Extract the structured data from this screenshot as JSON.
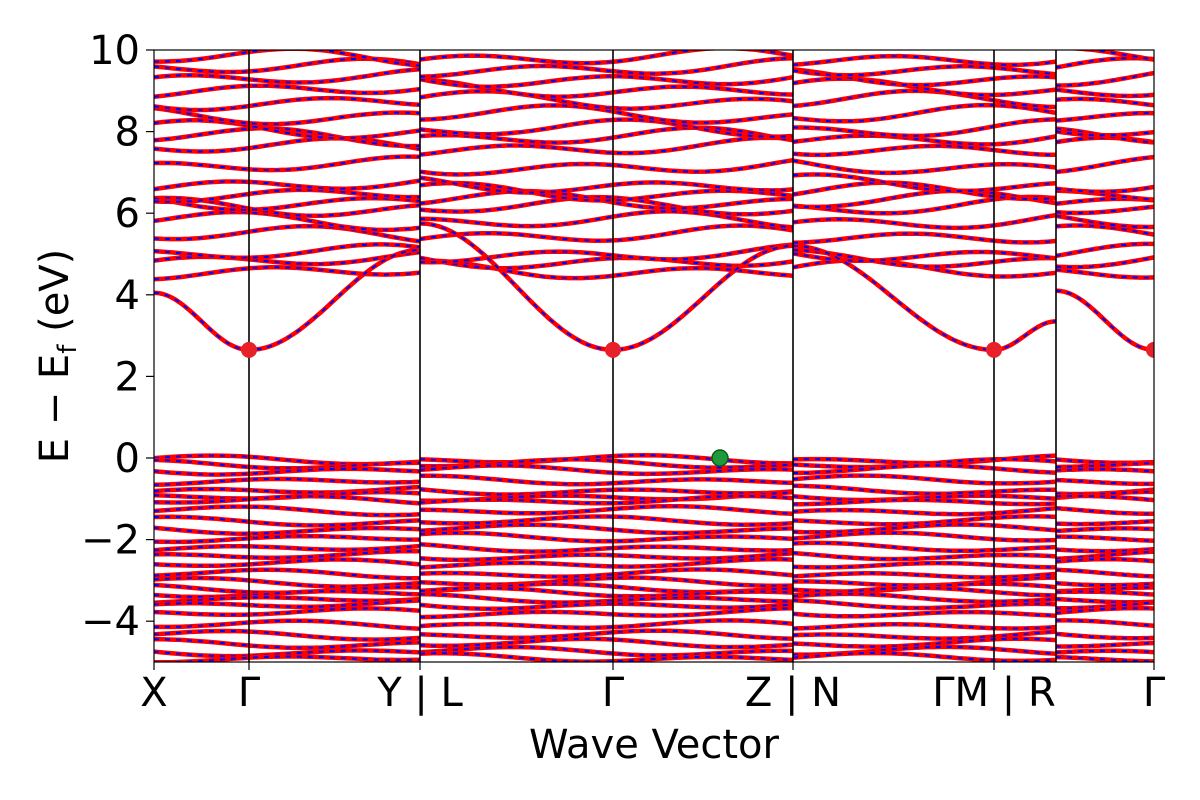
{
  "chart_data": {
    "type": "line",
    "xlabel": "Wave Vector",
    "ylabel_main": "E − E",
    "ylabel_sub": "f",
    "ylabel_tail": " (eV)",
    "ylim": [
      -5,
      10
    ],
    "yticks": [
      -4,
      -2,
      0,
      2,
      4,
      6,
      8,
      10
    ],
    "ytick_labels": [
      "−4",
      "−2",
      "0",
      "2",
      "4",
      "6",
      "8",
      "10"
    ],
    "xlim": [
      0,
      1
    ],
    "kpoints": [
      {
        "label": "X",
        "x": 0.0
      },
      {
        "label": "Γ",
        "x": 0.095
      },
      {
        "label": "Y | L",
        "x": 0.266
      },
      {
        "label": "Γ",
        "x": 0.459
      },
      {
        "label": "Z | N",
        "x": 0.639
      },
      {
        "label": "ΓM | R",
        "x": 0.84
      },
      {
        "label": "Γ",
        "x": 1.0
      }
    ],
    "vlines": [
      0.095,
      0.266,
      0.459,
      0.639,
      0.84,
      0.902
    ],
    "grid": false,
    "legend": "none",
    "colors": {
      "band_primary": "#ff0000",
      "band_secondary": "#0000ff",
      "cbm_marker": "#e8202a",
      "vbm_marker": "#1f9a3a",
      "vline": "#000000"
    },
    "segments": [
      {
        "start": 0.0,
        "end": 0.266,
        "anchor": 0.095
      },
      {
        "start": 0.266,
        "end": 0.639,
        "anchor": 0.459
      },
      {
        "start": 0.639,
        "end": 0.902,
        "anchor": 0.84
      },
      {
        "start": 0.902,
        "end": 1.0,
        "anchor": 1.0
      }
    ],
    "conduction_min_band": {
      "energy_at_gamma": 2.65,
      "endpoints": [
        {
          "x": 0.0,
          "y": 4.05
        },
        {
          "x": 0.266,
          "y": 5.1
        },
        {
          "x": 0.266,
          "y": 5.75
        },
        {
          "x": 0.639,
          "y": 5.2
        },
        {
          "x": 0.639,
          "y": 5.2
        },
        {
          "x": 0.902,
          "y": 3.35
        },
        {
          "x": 0.902,
          "y": 4.1
        },
        {
          "x": 1.0,
          "y": 2.65
        }
      ]
    },
    "conduction_bands_upper": [
      4.6,
      4.85,
      5.0,
      5.45,
      5.8,
      6.15,
      6.3,
      6.5,
      6.7,
      7.15,
      7.6,
      7.85,
      8.05,
      8.4,
      8.75,
      9.05,
      9.3,
      9.55,
      9.8
    ],
    "valence_bands": [
      -0.05,
      -0.15,
      -0.3,
      -0.55,
      -0.8,
      -0.95,
      -1.05,
      -1.3,
      -1.55,
      -1.75,
      -1.95,
      -2.2,
      -2.4,
      -2.6,
      -2.85,
      -3.05,
      -3.2,
      -3.3,
      -3.45,
      -3.6,
      -3.8,
      -4.1,
      -4.35,
      -4.55,
      -4.75,
      -4.9
    ],
    "markers": [
      {
        "type": "cbm",
        "x": 0.095,
        "y": 2.65
      },
      {
        "type": "cbm",
        "x": 0.459,
        "y": 2.65
      },
      {
        "type": "cbm",
        "x": 0.84,
        "y": 2.65
      },
      {
        "type": "cbm",
        "x": 1.0,
        "y": 2.65
      },
      {
        "type": "vbm",
        "x": 0.566,
        "y": 0.0
      }
    ]
  }
}
